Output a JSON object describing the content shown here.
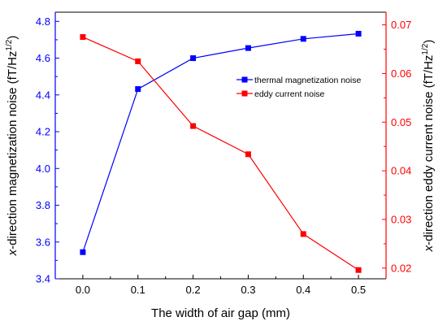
{
  "chart_data": {
    "type": "line",
    "x": [
      0.0,
      0.1,
      0.2,
      0.3,
      0.4,
      0.5
    ],
    "x_tick_labels": [
      "0.0",
      "0.1",
      "0.2",
      "0.3",
      "0.4",
      "0.5"
    ],
    "xlabel": "The width of air gap (mm)",
    "xlim": [
      -0.05,
      0.55
    ],
    "left_axis": {
      "label_prefix": "x",
      "label_rest": "-direction magnetization noise (fT/Hz",
      "label_sup": "1/2",
      "label_close": ")",
      "ylim": [
        3.4,
        4.85
      ],
      "ticks": [
        "3.4",
        "3.6",
        "3.8",
        "4.0",
        "4.2",
        "4.4",
        "4.6",
        "4.8"
      ],
      "color": "#0000ff"
    },
    "right_axis": {
      "label_prefix": "x",
      "label_rest": "-direction eddy current noise (fT/Hz",
      "label_sup": "1/2",
      "label_close": ")",
      "ylim": [
        0.0178,
        0.0726
      ],
      "ticks": [
        "0.02",
        "0.03",
        "0.04",
        "0.05",
        "0.06",
        "0.07"
      ],
      "color": "#ff0000"
    },
    "series": [
      {
        "name": "thermal magnetization noise",
        "axis": "left",
        "color": "#0000ff",
        "values": [
          3.545,
          4.432,
          4.6,
          4.655,
          4.705,
          4.733
        ]
      },
      {
        "name": "eddy current noise",
        "axis": "right",
        "color": "#ff0000",
        "values": [
          0.0675,
          0.0625,
          0.0492,
          0.0434,
          0.027,
          0.0196
        ]
      }
    ],
    "legend_position": "top-right",
    "grid": false
  }
}
